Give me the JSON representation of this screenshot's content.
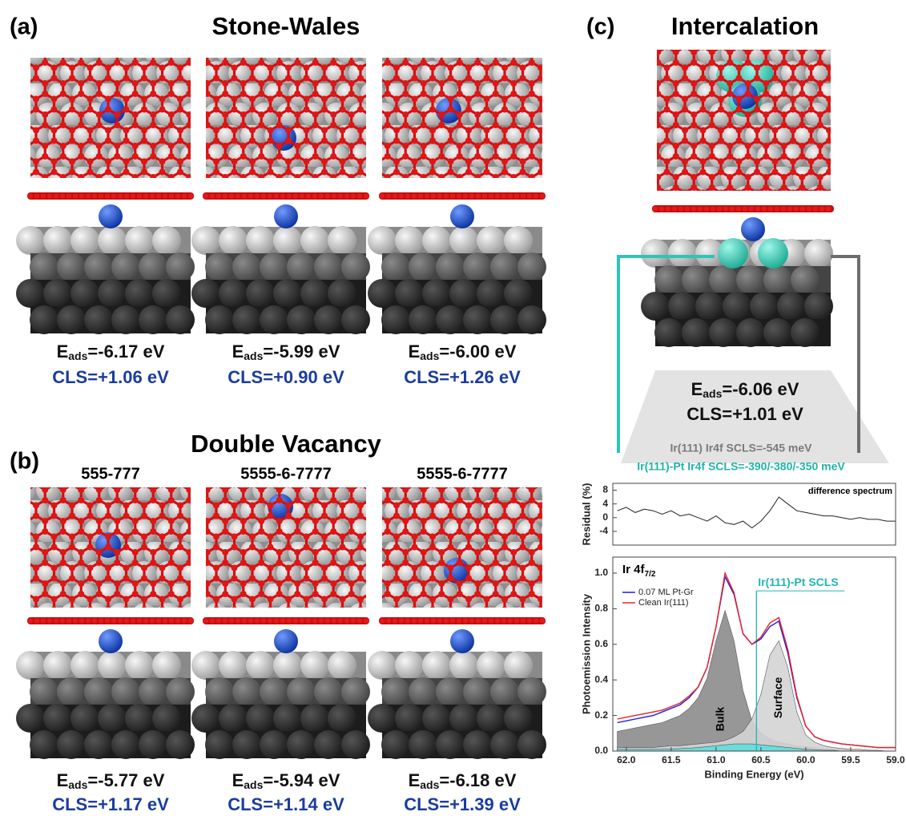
{
  "eads_symbol": "E",
  "eads_subscript": "ads",
  "panel_a": {
    "label": "(a)",
    "title": "Stone-Wales",
    "structures": [
      {
        "eads": "=-6.17 eV",
        "cls": "CLS=+1.06 eV"
      },
      {
        "eads": "=-5.99 eV",
        "cls": "CLS=+0.90 eV"
      },
      {
        "eads": "=-6.00 eV",
        "cls": "CLS=+1.26 eV"
      }
    ]
  },
  "panel_b": {
    "label": "(b)",
    "title": "Double Vacancy",
    "structures": [
      {
        "name": "555-777",
        "eads": "=-5.77 eV",
        "cls": "CLS=+1.17 eV"
      },
      {
        "name": "5555-6-7777",
        "eads": "=-5.94 eV",
        "cls": "CLS=+1.14 eV"
      },
      {
        "name": "5555-6-7777",
        "eads": "=-6.18 eV",
        "cls": "CLS=+1.39 eV"
      }
    ]
  },
  "panel_c": {
    "label": "(c)",
    "title": "Intercalation",
    "eads": "=-6.06 eV",
    "cls": "CLS=+1.01 eV",
    "scls_clean": "Ir(111) Ir4f SCLS=-545 meV",
    "scls_pt": "Ir(111)-Pt Ir4f SCLS=-390/-380/-350 meV"
  },
  "chart_data": [
    {
      "type": "line",
      "ylabel": "Residual (%)",
      "annotation": "difference spectrum",
      "x": [
        62.1,
        62.0,
        61.9,
        61.8,
        61.7,
        61.6,
        61.5,
        61.4,
        61.3,
        61.2,
        61.1,
        61.0,
        60.9,
        60.8,
        60.7,
        60.6,
        60.5,
        60.4,
        60.3,
        60.2,
        60.1,
        60.0,
        59.9,
        59.8,
        59.7,
        59.6,
        59.5,
        59.4,
        59.3,
        59.2,
        59.1,
        59.0
      ],
      "series": [
        {
          "color": "#222222",
          "values": [
            2,
            3,
            1.5,
            2.5,
            2,
            1,
            2,
            0.5,
            1,
            0,
            -1,
            0.5,
            -1.5,
            -2,
            -1,
            -3,
            -1,
            2,
            6,
            4,
            2,
            1.5,
            1,
            0.5,
            0.5,
            0,
            -0.5,
            0,
            -0.5,
            -0.5,
            -1,
            -1
          ]
        }
      ],
      "xlim": [
        62.15,
        59.0
      ],
      "ylim": [
        -8,
        10
      ],
      "yticks": [
        -4,
        0,
        4,
        8
      ]
    },
    {
      "type": "line",
      "title": "Ir 4f",
      "title_subscript": "7/2",
      "xlabel": "Binding Energy (eV)",
      "ylabel": "Photoemission Intensity",
      "x": [
        62.1,
        62.0,
        61.9,
        61.8,
        61.7,
        61.6,
        61.5,
        61.4,
        61.3,
        61.2,
        61.1,
        61.0,
        60.9,
        60.8,
        60.7,
        60.6,
        60.5,
        60.4,
        60.3,
        60.2,
        60.1,
        60.0,
        59.9,
        59.8,
        59.7,
        59.6,
        59.5,
        59.4,
        59.3,
        59.2,
        59.1,
        59.0
      ],
      "areas": [
        {
          "name": "Bulk",
          "color": "#8c8c8c",
          "values": [
            0.11,
            0.12,
            0.13,
            0.14,
            0.15,
            0.16,
            0.18,
            0.2,
            0.24,
            0.3,
            0.41,
            0.62,
            0.79,
            0.62,
            0.34,
            0.17,
            0.1,
            0.07,
            0.05,
            0.04,
            0.03,
            0.025,
            0.02,
            0.015,
            0.01,
            0.01,
            0.01,
            0.005,
            0.005,
            0,
            0,
            0
          ]
        },
        {
          "name": "Surface",
          "color": "#d4d4d4",
          "values": [
            0.02,
            0.02,
            0.02,
            0.02,
            0.02,
            0.025,
            0.03,
            0.03,
            0.035,
            0.04,
            0.045,
            0.05,
            0.06,
            0.08,
            0.11,
            0.18,
            0.32,
            0.54,
            0.62,
            0.47,
            0.22,
            0.09,
            0.05,
            0.03,
            0.02,
            0.015,
            0.01,
            0.01,
            0.005,
            0.005,
            0,
            0
          ]
        },
        {
          "color": "#5fdede",
          "values": [
            0.01,
            0.01,
            0.01,
            0.01,
            0.01,
            0.01,
            0.012,
            0.014,
            0.016,
            0.02,
            0.025,
            0.03,
            0.035,
            0.04,
            0.04,
            0.04,
            0.035,
            0.03,
            0.025,
            0.02,
            0.015,
            0.01,
            0.008,
            0.005,
            0.005,
            0,
            0,
            0,
            0,
            0,
            0,
            0
          ]
        }
      ],
      "series": [
        {
          "name": "0.07 ML Pt-Gr",
          "color": "#1a1aee",
          "values": [
            0.16,
            0.17,
            0.18,
            0.19,
            0.2,
            0.22,
            0.24,
            0.26,
            0.3,
            0.36,
            0.47,
            0.7,
            0.98,
            0.88,
            0.66,
            0.6,
            0.63,
            0.7,
            0.73,
            0.55,
            0.3,
            0.14,
            0.08,
            0.06,
            0.05,
            0.04,
            0.035,
            0.03,
            0.025,
            0.02,
            0.02,
            0.02
          ]
        },
        {
          "name": "Clean Ir(111)",
          "color": "#ee2222",
          "values": [
            0.18,
            0.19,
            0.2,
            0.21,
            0.22,
            0.23,
            0.25,
            0.27,
            0.31,
            0.36,
            0.47,
            0.7,
            1.0,
            0.89,
            0.66,
            0.6,
            0.64,
            0.72,
            0.75,
            0.57,
            0.31,
            0.14,
            0.08,
            0.06,
            0.05,
            0.04,
            0.035,
            0.03,
            0.025,
            0.02,
            0.02,
            0.02
          ]
        }
      ],
      "marker": {
        "label": "Ir(111)-Pt SCLS",
        "x": 60.55,
        "color": "#22b5b0"
      },
      "xlim": [
        62.15,
        59.0
      ],
      "ylim": [
        0,
        1.09
      ],
      "xticks": [
        {
          "value": 62,
          "label": "62.0"
        },
        61.5,
        {
          "value": 61,
          "label": "61.0"
        },
        60.5,
        {
          "value": 60,
          "label": "60.0"
        },
        59.5,
        {
          "value": 59,
          "label": "59.0"
        }
      ],
      "yticks": [
        {
          "value": 0,
          "label": "0.0"
        },
        0.2,
        0.4,
        0.6,
        0.8,
        {
          "value": 1,
          "label": "1.0"
        }
      ]
    }
  ]
}
